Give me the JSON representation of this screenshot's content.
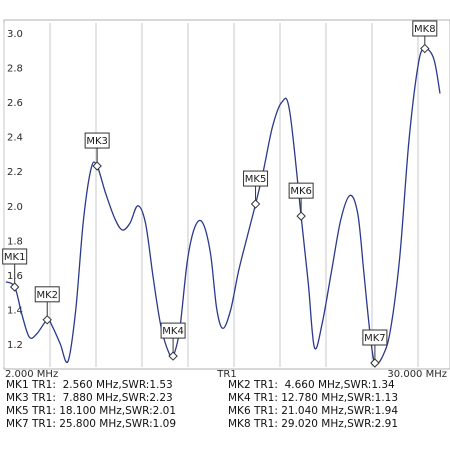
{
  "chart_data": {
    "type": "line",
    "trace_name": "TR1",
    "x_unit": "MHz",
    "xlim": [
      2.0,
      30.0
    ],
    "ylim": [
      1.1,
      3.05
    ],
    "grid": true,
    "x_start_label": "2.000 MHz",
    "x_stop_label": "30.000 MHz",
    "y_ticks": [
      {
        "value": 3.0,
        "label": "3.0"
      },
      {
        "value": 2.8,
        "label": "2.8"
      },
      {
        "value": 2.6,
        "label": "2.6"
      },
      {
        "value": 2.4,
        "label": "2.4"
      },
      {
        "value": 2.2,
        "label": "2.2"
      },
      {
        "value": 2.0,
        "label": "2.0"
      },
      {
        "value": 1.8,
        "label": "1.8"
      },
      {
        "value": 1.6,
        "label": "1.6"
      },
      {
        "value": 1.4,
        "label": "1.4"
      },
      {
        "value": 1.2,
        "label": "1.2"
      }
    ],
    "series": [
      {
        "color": "#2b3a8a",
        "points": [
          [
            2.0,
            1.56
          ],
          [
            2.56,
            1.53
          ],
          [
            3.0,
            1.38
          ],
          [
            3.5,
            1.24
          ],
          [
            4.0,
            1.26
          ],
          [
            4.66,
            1.34
          ],
          [
            5.0,
            1.3
          ],
          [
            5.5,
            1.2
          ],
          [
            6.0,
            1.1
          ],
          [
            6.5,
            1.4
          ],
          [
            7.0,
            1.92
          ],
          [
            7.5,
            2.22
          ],
          [
            7.88,
            2.23
          ],
          [
            8.4,
            2.08
          ],
          [
            9.0,
            1.93
          ],
          [
            9.5,
            1.86
          ],
          [
            10.0,
            1.9
          ],
          [
            10.5,
            2.0
          ],
          [
            11.0,
            1.9
          ],
          [
            11.5,
            1.58
          ],
          [
            12.0,
            1.3
          ],
          [
            12.5,
            1.15
          ],
          [
            12.78,
            1.13
          ],
          [
            13.2,
            1.28
          ],
          [
            13.7,
            1.68
          ],
          [
            14.2,
            1.88
          ],
          [
            14.7,
            1.9
          ],
          [
            15.2,
            1.72
          ],
          [
            15.6,
            1.4
          ],
          [
            16.0,
            1.29
          ],
          [
            16.5,
            1.4
          ],
          [
            17.0,
            1.62
          ],
          [
            17.5,
            1.8
          ],
          [
            18.1,
            2.01
          ],
          [
            18.6,
            2.2
          ],
          [
            19.2,
            2.46
          ],
          [
            19.8,
            2.6
          ],
          [
            20.3,
            2.55
          ],
          [
            21.04,
            1.94
          ],
          [
            21.5,
            1.55
          ],
          [
            21.9,
            1.18
          ],
          [
            22.4,
            1.32
          ],
          [
            23.0,
            1.62
          ],
          [
            23.6,
            1.92
          ],
          [
            24.2,
            2.06
          ],
          [
            24.7,
            1.95
          ],
          [
            25.1,
            1.6
          ],
          [
            25.5,
            1.25
          ],
          [
            25.8,
            1.09
          ],
          [
            26.3,
            1.13
          ],
          [
            26.8,
            1.28
          ],
          [
            27.4,
            1.7
          ],
          [
            28.0,
            2.38
          ],
          [
            28.6,
            2.82
          ],
          [
            29.02,
            2.91
          ],
          [
            29.6,
            2.85
          ],
          [
            30.0,
            2.65
          ]
        ]
      }
    ],
    "markers": [
      {
        "name": "MK1",
        "freq": 2.56,
        "swr": 1.53,
        "readout": "MK1 TR1:  2.560 MHz,SWR:1.53"
      },
      {
        "name": "MK2",
        "freq": 4.66,
        "swr": 1.34,
        "readout": "MK2 TR1:  4.660 MHz,SWR:1.34"
      },
      {
        "name": "MK3",
        "freq": 7.88,
        "swr": 2.23,
        "readout": "MK3 TR1:  7.880 MHz,SWR:2.23"
      },
      {
        "name": "MK4",
        "freq": 12.78,
        "swr": 1.13,
        "readout": "MK4 TR1: 12.780 MHz,SWR:1.13"
      },
      {
        "name": "MK5",
        "freq": 18.1,
        "swr": 2.01,
        "readout": "MK5 TR1: 18.100 MHz,SWR:2.01"
      },
      {
        "name": "MK6",
        "freq": 21.04,
        "swr": 1.94,
        "readout": "MK6 TR1: 21.040 MHz,SWR:1.94"
      },
      {
        "name": "MK7",
        "freq": 25.8,
        "swr": 1.09,
        "readout": "MK7 TR1: 25.800 MHz,SWR:1.09"
      },
      {
        "name": "MK8",
        "freq": 29.02,
        "swr": 2.91,
        "readout": "MK8 TR1: 29.020 MHz,SWR:2.91"
      }
    ]
  }
}
